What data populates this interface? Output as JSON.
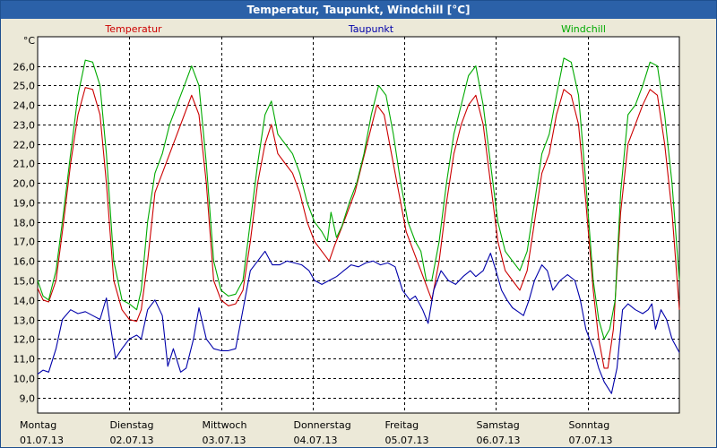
{
  "window": {
    "title": "Temperatur, Taupunkt, Windchill [°C]"
  },
  "chart_data": {
    "type": "line",
    "title": "Temperatur, Taupunkt, Windchill [°C]",
    "ylabel": "°C",
    "ylim": [
      8.2,
      27.5
    ],
    "yticks": [
      "9,0",
      "10,0",
      "11,0",
      "12,0",
      "13,0",
      "14,0",
      "15,0",
      "16,0",
      "17,0",
      "18,0",
      "19,0",
      "20,0",
      "21,0",
      "22,0",
      "23,0",
      "24,0",
      "25,0",
      "26,0"
    ],
    "xlim": [
      0,
      7
    ],
    "days": [
      {
        "name": "Montag",
        "date": "01.07.13",
        "pos": 0
      },
      {
        "name": "Dienstag",
        "date": "02.07.13",
        "pos": 1
      },
      {
        "name": "Mittwoch",
        "date": "03.07.13",
        "pos": 2
      },
      {
        "name": "Donnerstag",
        "date": "04.07.13",
        "pos": 3
      },
      {
        "name": "Freitag",
        "date": "05.07.13",
        "pos": 4
      },
      {
        "name": "Samstag",
        "date": "06.07.13",
        "pos": 5
      },
      {
        "name": "Sonntag",
        "date": "07.07.13",
        "pos": 6
      }
    ],
    "series": [
      {
        "name": "Temperatur",
        "color": "#cc0000",
        "points": [
          [
            0,
            14.6
          ],
          [
            0.06,
            14.0
          ],
          [
            0.12,
            13.9
          ],
          [
            0.2,
            15.0
          ],
          [
            0.27,
            17.5
          ],
          [
            0.36,
            21.0
          ],
          [
            0.44,
            23.5
          ],
          [
            0.52,
            24.9
          ],
          [
            0.6,
            24.8
          ],
          [
            0.68,
            23.5
          ],
          [
            0.75,
            20.0
          ],
          [
            0.83,
            15.0
          ],
          [
            0.92,
            13.5
          ],
          [
            1.0,
            13.0
          ],
          [
            1.08,
            12.9
          ],
          [
            1.13,
            13.5
          ],
          [
            1.2,
            16.0
          ],
          [
            1.28,
            19.5
          ],
          [
            1.36,
            20.5
          ],
          [
            1.44,
            21.5
          ],
          [
            1.52,
            22.5
          ],
          [
            1.6,
            23.5
          ],
          [
            1.68,
            24.5
          ],
          [
            1.76,
            23.5
          ],
          [
            1.84,
            20.0
          ],
          [
            1.92,
            15.0
          ],
          [
            2.0,
            14.0
          ],
          [
            2.08,
            13.7
          ],
          [
            2.16,
            13.8
          ],
          [
            2.24,
            14.5
          ],
          [
            2.32,
            17.0
          ],
          [
            2.4,
            20.0
          ],
          [
            2.48,
            22.0
          ],
          [
            2.55,
            23.0
          ],
          [
            2.62,
            21.5
          ],
          [
            2.7,
            21.0
          ],
          [
            2.78,
            20.5
          ],
          [
            2.86,
            19.5
          ],
          [
            2.94,
            18.0
          ],
          [
            3.02,
            17.0
          ],
          [
            3.1,
            16.5
          ],
          [
            3.18,
            16.0
          ],
          [
            3.24,
            16.8
          ],
          [
            3.3,
            17.5
          ],
          [
            3.38,
            18.5
          ],
          [
            3.46,
            19.5
          ],
          [
            3.54,
            21.0
          ],
          [
            3.62,
            22.5
          ],
          [
            3.7,
            24.0
          ],
          [
            3.78,
            23.5
          ],
          [
            3.86,
            21.5
          ],
          [
            3.94,
            19.5
          ],
          [
            4.02,
            17.5
          ],
          [
            4.1,
            16.5
          ],
          [
            4.18,
            15.5
          ],
          [
            4.26,
            14.5
          ],
          [
            4.3,
            14.0
          ],
          [
            4.38,
            16.0
          ],
          [
            4.46,
            19.0
          ],
          [
            4.54,
            21.5
          ],
          [
            4.62,
            23.0
          ],
          [
            4.7,
            24.0
          ],
          [
            4.78,
            24.5
          ],
          [
            4.86,
            23.0
          ],
          [
            4.94,
            20.0
          ],
          [
            5.02,
            17.0
          ],
          [
            5.1,
            15.5
          ],
          [
            5.18,
            15.0
          ],
          [
            5.26,
            14.5
          ],
          [
            5.34,
            15.5
          ],
          [
            5.42,
            18.0
          ],
          [
            5.5,
            20.5
          ],
          [
            5.58,
            21.5
          ],
          [
            5.66,
            23.5
          ],
          [
            5.74,
            24.8
          ],
          [
            5.82,
            24.5
          ],
          [
            5.9,
            23.0
          ],
          [
            5.98,
            19.0
          ],
          [
            6.06,
            14.5
          ],
          [
            6.12,
            12.0
          ],
          [
            6.18,
            10.5
          ],
          [
            6.22,
            10.5
          ],
          [
            6.28,
            12.5
          ],
          [
            6.36,
            18.5
          ],
          [
            6.44,
            22.0
          ],
          [
            6.52,
            23.0
          ],
          [
            6.6,
            24.0
          ],
          [
            6.68,
            24.8
          ],
          [
            6.76,
            24.5
          ],
          [
            6.84,
            22.0
          ],
          [
            6.92,
            18.5
          ],
          [
            7.0,
            13.5
          ]
        ]
      },
      {
        "name": "Taupunkt",
        "color": "#0000aa",
        "points": [
          [
            0,
            10.2
          ],
          [
            0.06,
            10.4
          ],
          [
            0.12,
            10.3
          ],
          [
            0.2,
            11.5
          ],
          [
            0.27,
            13.0
          ],
          [
            0.36,
            13.5
          ],
          [
            0.44,
            13.3
          ],
          [
            0.52,
            13.4
          ],
          [
            0.6,
            13.2
          ],
          [
            0.68,
            13.0
          ],
          [
            0.75,
            14.1
          ],
          [
            0.8,
            12.5
          ],
          [
            0.85,
            11.0
          ],
          [
            0.92,
            11.5
          ],
          [
            1.0,
            12.0
          ],
          [
            1.08,
            12.2
          ],
          [
            1.13,
            12.0
          ],
          [
            1.2,
            13.5
          ],
          [
            1.28,
            14.0
          ],
          [
            1.36,
            13.2
          ],
          [
            1.42,
            10.6
          ],
          [
            1.48,
            11.5
          ],
          [
            1.56,
            10.3
          ],
          [
            1.62,
            10.5
          ],
          [
            1.7,
            12.0
          ],
          [
            1.76,
            13.6
          ],
          [
            1.84,
            12.0
          ],
          [
            1.92,
            11.5
          ],
          [
            2.0,
            11.4
          ],
          [
            2.08,
            11.4
          ],
          [
            2.16,
            11.5
          ],
          [
            2.24,
            13.5
          ],
          [
            2.32,
            15.5
          ],
          [
            2.4,
            16.0
          ],
          [
            2.48,
            16.5
          ],
          [
            2.56,
            15.8
          ],
          [
            2.64,
            15.8
          ],
          [
            2.72,
            16.0
          ],
          [
            2.8,
            15.9
          ],
          [
            2.88,
            15.8
          ],
          [
            2.96,
            15.5
          ],
          [
            3.02,
            15.0
          ],
          [
            3.1,
            14.8
          ],
          [
            3.18,
            15.0
          ],
          [
            3.26,
            15.2
          ],
          [
            3.34,
            15.5
          ],
          [
            3.42,
            15.8
          ],
          [
            3.5,
            15.7
          ],
          [
            3.58,
            15.9
          ],
          [
            3.66,
            16.0
          ],
          [
            3.74,
            15.8
          ],
          [
            3.82,
            15.9
          ],
          [
            3.9,
            15.7
          ],
          [
            3.98,
            14.5
          ],
          [
            4.06,
            14.0
          ],
          [
            4.12,
            14.2
          ],
          [
            4.2,
            13.5
          ],
          [
            4.26,
            12.8
          ],
          [
            4.32,
            14.5
          ],
          [
            4.4,
            15.5
          ],
          [
            4.48,
            15.0
          ],
          [
            4.56,
            14.8
          ],
          [
            4.64,
            15.2
          ],
          [
            4.72,
            15.5
          ],
          [
            4.78,
            15.2
          ],
          [
            4.86,
            15.5
          ],
          [
            4.94,
            16.4
          ],
          [
            5.0,
            15.5
          ],
          [
            5.06,
            14.5
          ],
          [
            5.12,
            14.0
          ],
          [
            5.18,
            13.6
          ],
          [
            5.24,
            13.4
          ],
          [
            5.3,
            13.2
          ],
          [
            5.36,
            14.0
          ],
          [
            5.42,
            15.0
          ],
          [
            5.5,
            15.8
          ],
          [
            5.56,
            15.5
          ],
          [
            5.62,
            14.5
          ],
          [
            5.7,
            15.0
          ],
          [
            5.78,
            15.3
          ],
          [
            5.86,
            15.0
          ],
          [
            5.92,
            14.0
          ],
          [
            5.98,
            12.5
          ],
          [
            6.06,
            11.5
          ],
          [
            6.12,
            10.5
          ],
          [
            6.18,
            9.8
          ],
          [
            6.26,
            9.2
          ],
          [
            6.32,
            10.5
          ],
          [
            6.38,
            13.5
          ],
          [
            6.44,
            13.8
          ],
          [
            6.52,
            13.5
          ],
          [
            6.6,
            13.3
          ],
          [
            6.66,
            13.5
          ],
          [
            6.7,
            13.8
          ],
          [
            6.74,
            12.5
          ],
          [
            6.8,
            13.5
          ],
          [
            6.86,
            13.0
          ],
          [
            6.92,
            12.0
          ],
          [
            7.0,
            11.3
          ]
        ]
      },
      {
        "name": "Windchill",
        "color": "#00aa00",
        "points": [
          [
            0,
            15.0
          ],
          [
            0.06,
            14.2
          ],
          [
            0.12,
            14.0
          ],
          [
            0.2,
            15.5
          ],
          [
            0.27,
            18.0
          ],
          [
            0.36,
            21.5
          ],
          [
            0.44,
            24.5
          ],
          [
            0.52,
            26.3
          ],
          [
            0.6,
            26.2
          ],
          [
            0.68,
            25.0
          ],
          [
            0.75,
            21.5
          ],
          [
            0.83,
            16.0
          ],
          [
            0.92,
            14.0
          ],
          [
            1.0,
            13.8
          ],
          [
            1.08,
            13.5
          ],
          [
            1.13,
            14.5
          ],
          [
            1.2,
            18.0
          ],
          [
            1.28,
            20.5
          ],
          [
            1.36,
            21.5
          ],
          [
            1.44,
            23.0
          ],
          [
            1.52,
            24.0
          ],
          [
            1.6,
            25.0
          ],
          [
            1.68,
            26.0
          ],
          [
            1.76,
            25.0
          ],
          [
            1.84,
            21.0
          ],
          [
            1.92,
            16.0
          ],
          [
            2.0,
            14.5
          ],
          [
            2.08,
            14.2
          ],
          [
            2.16,
            14.3
          ],
          [
            2.24,
            15.0
          ],
          [
            2.32,
            18.0
          ],
          [
            2.4,
            21.0
          ],
          [
            2.48,
            23.5
          ],
          [
            2.55,
            24.2
          ],
          [
            2.62,
            22.5
          ],
          [
            2.7,
            22.0
          ],
          [
            2.78,
            21.5
          ],
          [
            2.86,
            20.5
          ],
          [
            2.94,
            19.0
          ],
          [
            3.02,
            18.0
          ],
          [
            3.1,
            17.5
          ],
          [
            3.16,
            17.0
          ],
          [
            3.2,
            18.5
          ],
          [
            3.26,
            17.2
          ],
          [
            3.32,
            17.8
          ],
          [
            3.4,
            19.0
          ],
          [
            3.48,
            20.0
          ],
          [
            3.56,
            21.5
          ],
          [
            3.64,
            23.5
          ],
          [
            3.72,
            25.0
          ],
          [
            3.8,
            24.5
          ],
          [
            3.88,
            22.5
          ],
          [
            3.96,
            20.0
          ],
          [
            4.04,
            18.0
          ],
          [
            4.12,
            17.0
          ],
          [
            4.18,
            16.5
          ],
          [
            4.24,
            15.0
          ],
          [
            4.3,
            15.0
          ],
          [
            4.38,
            17.0
          ],
          [
            4.46,
            20.0
          ],
          [
            4.54,
            22.5
          ],
          [
            4.62,
            24.0
          ],
          [
            4.7,
            25.5
          ],
          [
            4.78,
            26.0
          ],
          [
            4.86,
            24.0
          ],
          [
            4.94,
            21.0
          ],
          [
            5.02,
            18.0
          ],
          [
            5.1,
            16.5
          ],
          [
            5.18,
            16.0
          ],
          [
            5.26,
            15.5
          ],
          [
            5.34,
            16.5
          ],
          [
            5.42,
            19.0
          ],
          [
            5.5,
            21.5
          ],
          [
            5.58,
            22.5
          ],
          [
            5.66,
            24.5
          ],
          [
            5.74,
            26.4
          ],
          [
            5.82,
            26.2
          ],
          [
            5.9,
            24.5
          ],
          [
            5.98,
            20.0
          ],
          [
            6.06,
            15.0
          ],
          [
            6.12,
            13.0
          ],
          [
            6.18,
            12.0
          ],
          [
            6.24,
            12.5
          ],
          [
            6.3,
            14.0
          ],
          [
            6.36,
            19.5
          ],
          [
            6.44,
            23.5
          ],
          [
            6.52,
            24.0
          ],
          [
            6.6,
            25.0
          ],
          [
            6.68,
            26.2
          ],
          [
            6.76,
            26.0
          ],
          [
            6.84,
            23.5
          ],
          [
            6.92,
            20.0
          ],
          [
            7.0,
            15.0
          ]
        ]
      }
    ]
  }
}
